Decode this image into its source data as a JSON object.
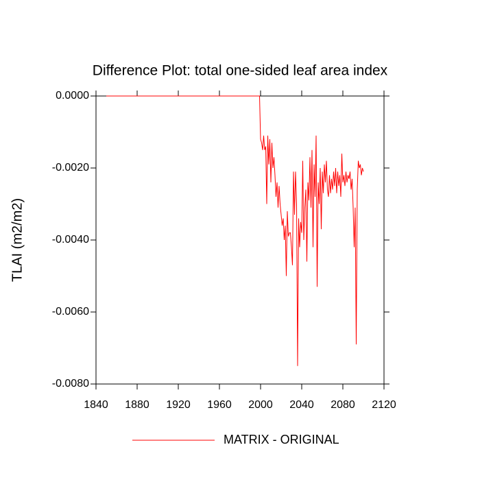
{
  "chart_data": {
    "type": "line",
    "title": "Difference Plot: total one-sided leaf area index",
    "y_label": "TLAI  (m2/m2)",
    "x": [
      1850,
      1999,
      2000,
      2001,
      2002,
      2003,
      2004,
      2005,
      2006,
      2007,
      2008,
      2009,
      2010,
      2011,
      2012,
      2013,
      2014,
      2015,
      2016,
      2017,
      2018,
      2019,
      2020,
      2021,
      2022,
      2023,
      2024,
      2025,
      2026,
      2027,
      2028,
      2029,
      2030,
      2031,
      2032,
      2033,
      2034,
      2035,
      2036,
      2037,
      2038,
      2039,
      2040,
      2041,
      2042,
      2043,
      2044,
      2045,
      2046,
      2047,
      2048,
      2049,
      2050,
      2051,
      2052,
      2053,
      2054,
      2055,
      2056,
      2057,
      2058,
      2059,
      2060,
      2061,
      2062,
      2063,
      2064,
      2065,
      2066,
      2067,
      2068,
      2069,
      2070,
      2071,
      2072,
      2073,
      2074,
      2075,
      2076,
      2077,
      2078,
      2079,
      2080,
      2081,
      2082,
      2083,
      2084,
      2085,
      2086,
      2087,
      2088,
      2089,
      2090,
      2091,
      2092,
      2093,
      2094,
      2095,
      2096,
      2097,
      2098,
      2099,
      2100
    ],
    "series": [
      {
        "name": "MATRIX - ORIGINAL",
        "color": "#ff0000",
        "values": [
          0,
          0,
          -0.0012,
          -0.0013,
          -0.0015,
          -0.0011,
          -0.0015,
          -0.0014,
          -0.003,
          -0.0011,
          -0.0019,
          -0.0012,
          -0.0024,
          -0.0013,
          -0.002,
          -0.0017,
          -0.0022,
          -0.0028,
          -0.0024,
          -0.0031,
          -0.0025,
          -0.003,
          -0.0033,
          -0.0036,
          -0.0034,
          -0.004,
          -0.0036,
          -0.005,
          -0.0032,
          -0.0039,
          -0.0038,
          -0.0038,
          -0.0042,
          -0.0047,
          -0.0021,
          -0.0033,
          -0.0021,
          -0.003,
          -0.0075,
          -0.0034,
          -0.0042,
          -0.0035,
          -0.0038,
          -0.0018,
          -0.004,
          -0.0031,
          -0.0026,
          -0.0046,
          -0.0024,
          -0.0029,
          -0.0017,
          -0.0031,
          -0.0015,
          -0.0042,
          -0.0019,
          -0.0028,
          -0.0011,
          -0.0053,
          -0.0024,
          -0.003,
          -0.002,
          -0.0037,
          -0.0021,
          -0.0027,
          -0.0019,
          -0.0024,
          -0.0018,
          -0.0026,
          -0.0028,
          -0.0022,
          -0.0027,
          -0.0023,
          -0.0026,
          -0.0021,
          -0.0025,
          -0.002,
          -0.0027,
          -0.0021,
          -0.0025,
          -0.0022,
          -0.0028,
          -0.0016,
          -0.0024,
          -0.0022,
          -0.0025,
          -0.0021,
          -0.0024,
          -0.0022,
          -0.0023,
          -0.0021,
          -0.0026,
          -0.0023,
          -0.0031,
          -0.0042,
          -0.0031,
          -0.0069,
          -0.0026,
          -0.0018,
          -0.002,
          -0.0019,
          -0.0022,
          -0.002,
          -0.0021
        ]
      }
    ],
    "xlim": [
      1840,
      2120
    ],
    "xticks": [
      1840,
      1880,
      1920,
      1960,
      2000,
      2040,
      2080,
      2120
    ],
    "ylim": [
      -0.008,
      0
    ],
    "yticks": [
      {
        "value": -0.008,
        "label": "-0.0080"
      },
      {
        "value": -0.006,
        "label": "-0.0060"
      },
      {
        "value": -0.004,
        "label": "-0.0040"
      },
      {
        "value": -0.002,
        "label": "-0.0020"
      },
      {
        "value": 0,
        "label": "0.0000"
      }
    ]
  }
}
